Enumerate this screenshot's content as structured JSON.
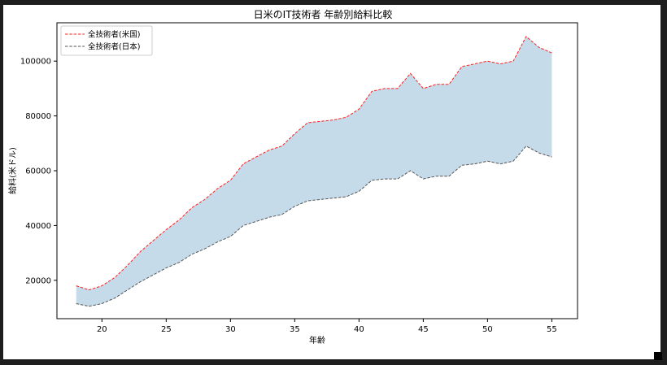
{
  "chart_data": {
    "type": "area",
    "title": "日米のIT技術者 年齢別給料比較",
    "xlabel": "年齢",
    "ylabel": "給料(米ドル)",
    "xlim": [
      16.5,
      57
    ],
    "ylim": [
      6000,
      114000
    ],
    "x_ticks": [
      20,
      25,
      30,
      35,
      40,
      45,
      50,
      55
    ],
    "y_ticks": [
      20000,
      40000,
      60000,
      80000,
      100000
    ],
    "grid": false,
    "legend_position": "top-left",
    "fill_between": {
      "color": "#c6dbea",
      "between": [
        "全技術者(米国)",
        "全技術者(日本)"
      ]
    },
    "x": [
      18,
      19,
      20,
      21,
      22,
      23,
      24,
      25,
      26,
      27,
      28,
      29,
      30,
      31,
      32,
      33,
      34,
      35,
      36,
      37,
      38,
      39,
      40,
      41,
      42,
      43,
      44,
      45,
      46,
      47,
      48,
      49,
      50,
      51,
      52,
      53,
      54,
      55
    ],
    "series": [
      {
        "name": "全技術者(米国)",
        "color": "#ff2020",
        "dash": "dashed",
        "values": [
          18000,
          16500,
          18000,
          21000,
          25500,
          30500,
          34500,
          38500,
          42000,
          46500,
          49500,
          53500,
          56500,
          62500,
          65000,
          67500,
          69000,
          73500,
          77500,
          78000,
          78500,
          79500,
          82500,
          89000,
          90000,
          90000,
          95500,
          90000,
          91500,
          91500,
          98000,
          99000,
          100000,
          99000,
          100000,
          109000,
          105000,
          103000
        ]
      },
      {
        "name": "全技術者(日本)",
        "color": "#555555",
        "dash": "dashed",
        "values": [
          11500,
          10500,
          11500,
          13500,
          16500,
          19500,
          22000,
          24500,
          26500,
          29500,
          31500,
          34000,
          36000,
          40000,
          41500,
          43000,
          44000,
          47000,
          49000,
          49500,
          50000,
          50500,
          52500,
          56500,
          57000,
          57000,
          60000,
          57000,
          58000,
          58000,
          62000,
          62500,
          63500,
          62500,
          63500,
          69000,
          66500,
          65000
        ]
      }
    ]
  }
}
